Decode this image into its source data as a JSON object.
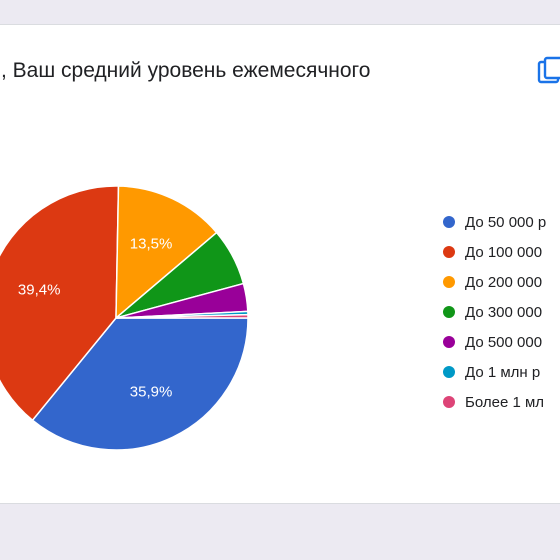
{
  "question": {
    "title": ", Ваш средний уровень ежемесячного"
  },
  "icons": {
    "copy": "copy-icon"
  },
  "chart_data": {
    "type": "pie",
    "categories": [
      "До 50 000 р",
      "До 100 000",
      "До 200 000",
      "До 300 000",
      "До 500 000",
      "До 1 млн р",
      "Более 1 мл"
    ],
    "values": [
      35.9,
      39.4,
      13.5,
      7.0,
      3.4,
      0.4,
      0.4
    ],
    "data_labels": [
      "35,9%",
      "39,4%",
      "13,5%",
      "",
      "",
      "",
      ""
    ],
    "colors": [
      "#3366cc",
      "#dc3912",
      "#ff9900",
      "#109618",
      "#990099",
      "#0099c6",
      "#dd4477"
    ],
    "legend_position": "right",
    "title": ""
  }
}
